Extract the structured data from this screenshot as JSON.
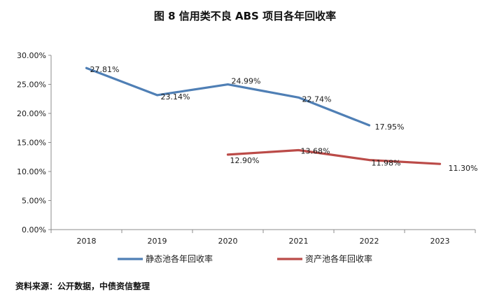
{
  "chart_data": {
    "type": "line",
    "title": "图 8 信用类不良 ABS 项目各年回收率",
    "categories": [
      "2018",
      "2019",
      "2020",
      "2021",
      "2022",
      "2023"
    ],
    "y_tick_labels": [
      "0.00%",
      "5.00%",
      "10.00%",
      "15.00%",
      "20.00%",
      "25.00%",
      "30.00%"
    ],
    "ylim": [
      0,
      30
    ],
    "grid": false,
    "legend_position": "bottom",
    "series": [
      {
        "name": "静态池各年回收率",
        "color": "#4f7fb5",
        "values": [
          27.81,
          23.14,
          24.99,
          22.74,
          17.95,
          null
        ],
        "labels": [
          "27.81%",
          "23.14%",
          "24.99%",
          "22.74%",
          "17.95%",
          null
        ]
      },
      {
        "name": "资产池各年回收率",
        "color": "#bb4b48",
        "values": [
          null,
          null,
          12.9,
          13.68,
          11.98,
          11.3
        ],
        "labels": [
          null,
          null,
          "12.90%",
          "13.68%",
          "11.98%",
          "11.30%"
        ]
      }
    ]
  },
  "source_note": "资料来源：公开数据，中债资信整理"
}
